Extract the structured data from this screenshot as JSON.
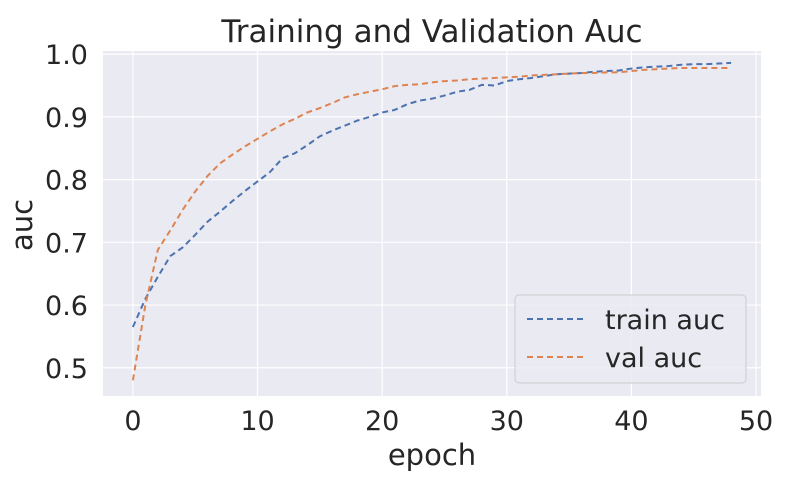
{
  "chart_data": {
    "type": "line",
    "title": "Training and Validation Auc",
    "xlabel": "epoch",
    "ylabel": "auc",
    "xlim": [
      -2.4,
      50.4
    ],
    "ylim": [
      0.455,
      1.005
    ],
    "xticks": [
      0,
      10,
      20,
      30,
      40,
      50
    ],
    "yticks": [
      0.5,
      0.6,
      0.7,
      0.8,
      0.9,
      1.0
    ],
    "xtick_labels": [
      "0",
      "10",
      "20",
      "30",
      "40",
      "50"
    ],
    "ytick_labels": [
      "0.5",
      "0.6",
      "0.7",
      "0.8",
      "0.9",
      "1.0"
    ],
    "grid": true,
    "legend_position": "lower-right",
    "x": [
      0,
      1,
      2,
      3,
      4,
      5,
      6,
      7,
      8,
      9,
      10,
      11,
      12,
      13,
      14,
      15,
      16,
      17,
      18,
      19,
      20,
      21,
      22,
      23,
      24,
      25,
      26,
      27,
      28,
      29,
      30,
      31,
      32,
      33,
      34,
      35,
      36,
      37,
      38,
      39,
      40,
      41,
      42,
      43,
      44,
      45,
      46,
      47,
      48
    ],
    "series": [
      {
        "name": "train auc",
        "color": "#4c72b0",
        "values": [
          0.565,
          0.61,
          0.645,
          0.678,
          0.692,
          0.712,
          0.733,
          0.749,
          0.766,
          0.782,
          0.797,
          0.812,
          0.834,
          0.842,
          0.855,
          0.869,
          0.878,
          0.886,
          0.894,
          0.9,
          0.907,
          0.911,
          0.92,
          0.926,
          0.929,
          0.934,
          0.94,
          0.943,
          0.951,
          0.95,
          0.957,
          0.96,
          0.962,
          0.965,
          0.968,
          0.969,
          0.97,
          0.972,
          0.973,
          0.974,
          0.977,
          0.979,
          0.98,
          0.981,
          0.983,
          0.984,
          0.984,
          0.985,
          0.986
        ]
      },
      {
        "name": "val auc",
        "color": "#dd8452",
        "values": [
          0.48,
          0.6,
          0.688,
          0.719,
          0.752,
          0.781,
          0.806,
          0.826,
          0.84,
          0.853,
          0.865,
          0.877,
          0.888,
          0.897,
          0.907,
          0.914,
          0.922,
          0.931,
          0.936,
          0.94,
          0.944,
          0.949,
          0.951,
          0.952,
          0.955,
          0.957,
          0.958,
          0.96,
          0.961,
          0.962,
          0.963,
          0.964,
          0.966,
          0.967,
          0.968,
          0.969,
          0.97,
          0.97,
          0.971,
          0.971,
          0.973,
          0.975,
          0.976,
          0.977,
          0.978,
          0.978,
          0.978,
          0.978,
          0.978
        ]
      }
    ]
  }
}
